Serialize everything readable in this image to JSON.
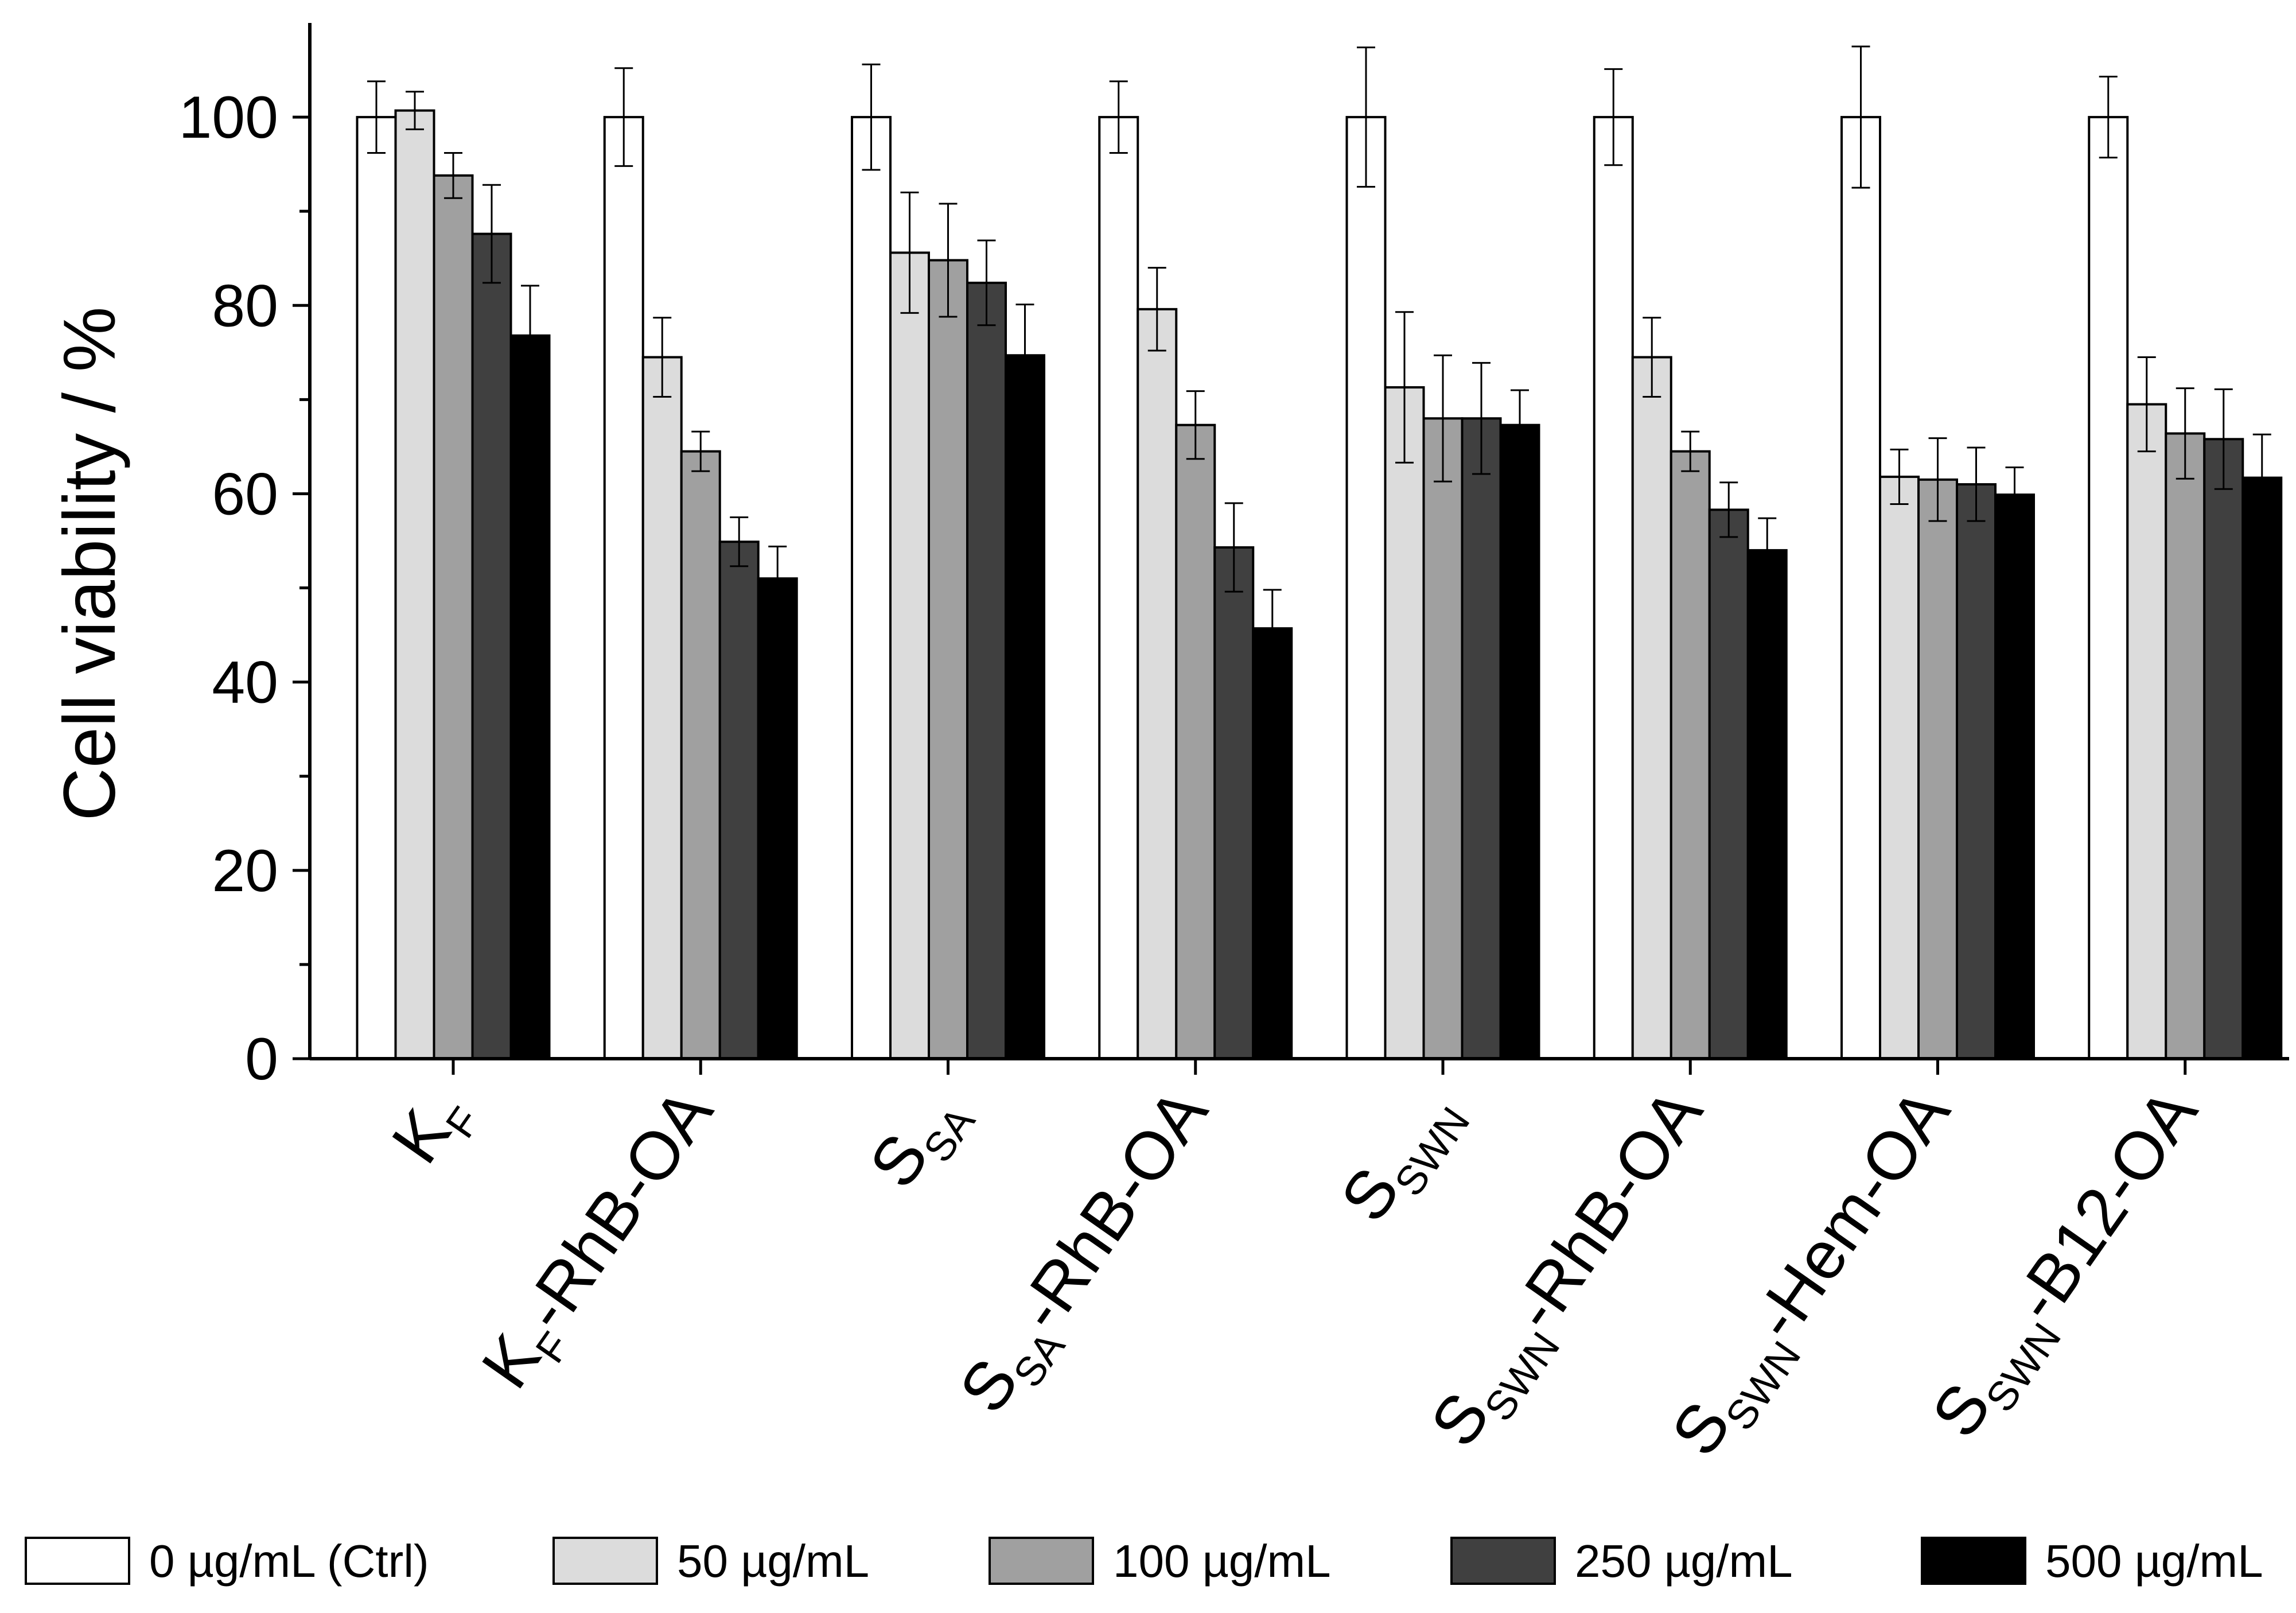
{
  "chart_data": {
    "type": "bar",
    "title": "",
    "xlabel": "",
    "ylabel": "Cell viability / %",
    "ylim": [
      0,
      110
    ],
    "yticks": [
      0,
      20,
      40,
      60,
      80,
      100
    ],
    "grid": false,
    "legend_position": "bottom",
    "categories": [
      {
        "main": "K",
        "sub": "F",
        "suffix": ""
      },
      {
        "main": "K",
        "sub": "F",
        "suffix": "-RhB-OA"
      },
      {
        "main": "S",
        "sub": "SA",
        "suffix": ""
      },
      {
        "main": "S",
        "sub": "SA",
        "suffix": "-RhB-OA"
      },
      {
        "main": "S",
        "sub": "SWN",
        "suffix": ""
      },
      {
        "main": "S",
        "sub": "SWN",
        "suffix": "-RhB-OA"
      },
      {
        "main": "S",
        "sub": "SWN",
        "suffix": "-Hem-OA"
      },
      {
        "main": "S",
        "sub": "SWN",
        "suffix": "-B12-OA"
      }
    ],
    "series": [
      {
        "name": "0 µg/mL (Ctrl)",
        "color": "#ffffff",
        "values": [
          100,
          100,
          100,
          100,
          100,
          100,
          100,
          100
        ],
        "errors": [
          3.8,
          5.2,
          5.6,
          3.8,
          7.4,
          5.1,
          7.5,
          4.3
        ]
      },
      {
        "name": "50 µg/mL",
        "color": "#dcdcdc",
        "values": [
          100.7,
          74.5,
          85.6,
          79.6,
          71.3,
          74.5,
          61.8,
          69.5
        ],
        "errors": [
          2.0,
          4.2,
          6.4,
          4.4,
          8.0,
          4.2,
          2.9,
          5.0
        ]
      },
      {
        "name": "100 µg/mL",
        "color": "#a0a0a0",
        "values": [
          93.8,
          64.5,
          84.8,
          67.3,
          68.0,
          64.5,
          61.5,
          66.4
        ],
        "errors": [
          2.4,
          2.1,
          6.0,
          3.6,
          6.7,
          2.1,
          4.4,
          4.8
        ]
      },
      {
        "name": "250 µg/mL",
        "color": "#404040",
        "values": [
          87.6,
          54.9,
          82.4,
          54.3,
          68.0,
          58.3,
          61.0,
          65.8
        ],
        "errors": [
          5.2,
          2.6,
          4.5,
          4.7,
          5.9,
          2.9,
          3.9,
          5.3
        ]
      },
      {
        "name": "500 µg/mL",
        "color": "#000000",
        "values": [
          76.8,
          51.0,
          74.7,
          45.7,
          67.3,
          54.0,
          59.9,
          61.7
        ],
        "errors": [
          5.3,
          3.4,
          5.4,
          4.1,
          3.7,
          3.4,
          2.9,
          4.6
        ]
      }
    ]
  }
}
